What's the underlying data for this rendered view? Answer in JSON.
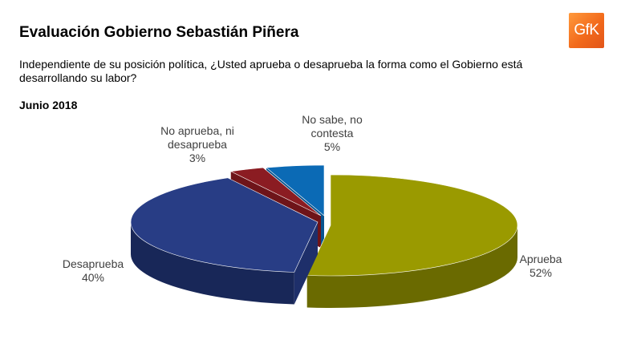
{
  "header": {
    "title": "Evaluación Gobierno Sebastián Piñera",
    "question": "Independiente de su posición política, ¿Usted aprueba o desaprueba la forma como el Gobierno está desarrollando su labor?",
    "period": "Junio 2018",
    "logo_text": "GfK"
  },
  "colors": {
    "logo": "#f26a1b"
  },
  "chart_data": {
    "type": "pie",
    "style": "3d-exploded",
    "slices": [
      {
        "label_lines": [
          "Aprueba"
        ],
        "value": 52,
        "value_label": "52%",
        "color": "#9a9a00",
        "side": "#7b7b00",
        "rim": "#6a6a00"
      },
      {
        "label_lines": [
          "Desaprueba"
        ],
        "value": 40,
        "value_label": "40%",
        "color": "#283d85",
        "side": "#1e2f6a",
        "rim": "#182758"
      },
      {
        "label_lines": [
          "No aprueba, ni",
          "desaprueba"
        ],
        "value": 3,
        "value_label": "3%",
        "color": "#8b1c22",
        "side": "#6e1419",
        "rim": "#5c1014"
      },
      {
        "label_lines": [
          "No sabe, no",
          "contesta"
        ],
        "value": 5,
        "value_label": "5%",
        "color": "#0b6ab5",
        "side": "#08548f",
        "rim": "#074577"
      }
    ]
  }
}
